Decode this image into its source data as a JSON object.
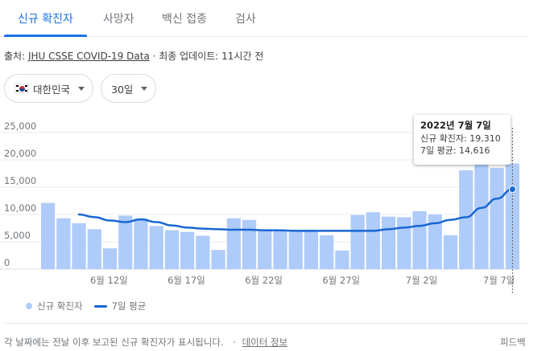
{
  "tabs": [
    {
      "label": "신규 확진자",
      "active": true
    },
    {
      "label": "사망자",
      "active": false
    },
    {
      "label": "백신 접종",
      "active": false
    },
    {
      "label": "검사",
      "active": false
    }
  ],
  "source": {
    "prefix": "출처: ",
    "link": "JHU CSSE COVID-19 Data",
    "suffix": " · 최종 업데이트: 11시간 전"
  },
  "filters": {
    "region": "대한민국",
    "period": "30일"
  },
  "colors": {
    "accent": "#1a73e8",
    "bar": "#aecbfa",
    "line": "#1967d2"
  },
  "tooltip": {
    "date": "2022년 7월 7일",
    "cases_label": "신규 확진자: 19,310",
    "avg_label": "7일 평균: 14,616"
  },
  "chart_data": {
    "type": "bar",
    "title": "",
    "xlabel": "",
    "ylabel": "",
    "ylim": [
      0,
      25000
    ],
    "y_ticks": [
      "25,000",
      "20,000",
      "15,000",
      "10,000",
      "5,000",
      "0"
    ],
    "y_tick_values": [
      25000,
      20000,
      15000,
      10000,
      5000,
      0
    ],
    "x_tick_labels": [
      {
        "label": "6월 12일",
        "index": 5
      },
      {
        "label": "6월 17일",
        "index": 10
      },
      {
        "label": "6월 22일",
        "index": 15
      },
      {
        "label": "6월 27일",
        "index": 20
      },
      {
        "label": "7월 2일",
        "index": 25
      },
      {
        "label": "7월 7일",
        "index": 30
      }
    ],
    "categories": [
      "6/7",
      "6/8",
      "6/9",
      "6/10",
      "6/11",
      "6/12",
      "6/13",
      "6/14",
      "6/15",
      "6/16",
      "6/17",
      "6/18",
      "6/19",
      "6/20",
      "6/21",
      "6/22",
      "6/23",
      "6/24",
      "6/25",
      "6/26",
      "6/27",
      "6/28",
      "6/29",
      "6/30",
      "7/1",
      "7/2",
      "7/3",
      "7/4",
      "7/5",
      "7/6",
      "7/7"
    ],
    "series": [
      {
        "name": "신규 확진자",
        "type": "bar",
        "values": [
          12100,
          9300,
          8400,
          7300,
          3800,
          9800,
          9300,
          7900,
          7100,
          6800,
          6100,
          3500,
          9300,
          9000,
          7300,
          7200,
          7200,
          7200,
          6200,
          3400,
          9900,
          10400,
          9600,
          9500,
          10600,
          10000,
          6200,
          18100,
          19400,
          18500,
          19310
        ]
      },
      {
        "name": "7일 평균",
        "type": "line",
        "values": [
          null,
          null,
          10000,
          9500,
          8900,
          8600,
          9100,
          8600,
          8000,
          7600,
          7400,
          7300,
          7200,
          7200,
          7100,
          7100,
          7000,
          7000,
          7000,
          7000,
          7000,
          7000,
          7300,
          7600,
          7900,
          8400,
          9000,
          9500,
          11200,
          12900,
          14616
        ]
      }
    ],
    "grid": true,
    "legend_position": "bottom-left"
  },
  "legend": {
    "bar_label": "신규 확진자",
    "line_label": "7일 평균"
  },
  "footer": {
    "text": "각 날짜에는 전날 이후 보고된 신규 확진자가 표시됩니다.",
    "separator": "·",
    "link": "데이터 정보",
    "feedback": "피드백"
  }
}
